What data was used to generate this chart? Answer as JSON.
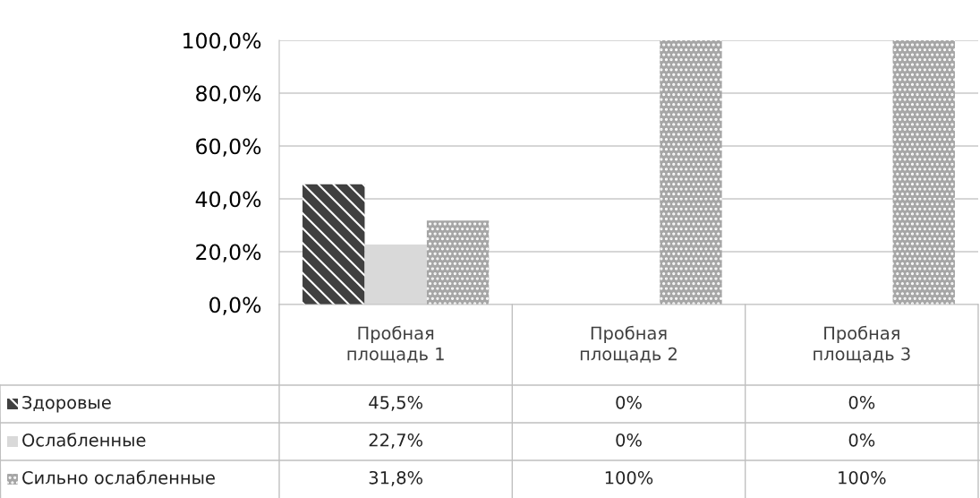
{
  "chart_data": {
    "type": "bar",
    "categories": [
      "Пробная площадь 1",
      "Пробная площадь 2",
      "Пробная площадь 3"
    ],
    "series": [
      {
        "name": "Здоровые",
        "color": "#404040",
        "values": [
          45.5,
          0,
          0
        ],
        "value_labels": [
          "45,5%",
          "0%",
          "0%"
        ]
      },
      {
        "name": "Ослабленные",
        "color": "#d9d9d9",
        "values": [
          22.7,
          0,
          0
        ],
        "value_labels": [
          "22,7%",
          "0%",
          "0%"
        ]
      },
      {
        "name": "Сильно ослабленные",
        "color": "#a6a6a6",
        "values": [
          31.8,
          100,
          100
        ],
        "value_labels": [
          "31,8%",
          "100%",
          "100%"
        ]
      }
    ],
    "ylim": [
      0,
      100
    ],
    "yticks": [
      {
        "value": 0,
        "label": "0,0%"
      },
      {
        "value": 20,
        "label": "20,0%"
      },
      {
        "value": 40,
        "label": "40,0%"
      },
      {
        "value": 60,
        "label": "60,0%"
      },
      {
        "value": 80,
        "label": "80,0%"
      },
      {
        "value": 100,
        "label": "100,0%"
      }
    ],
    "grid": "y",
    "legend": "bottom"
  }
}
